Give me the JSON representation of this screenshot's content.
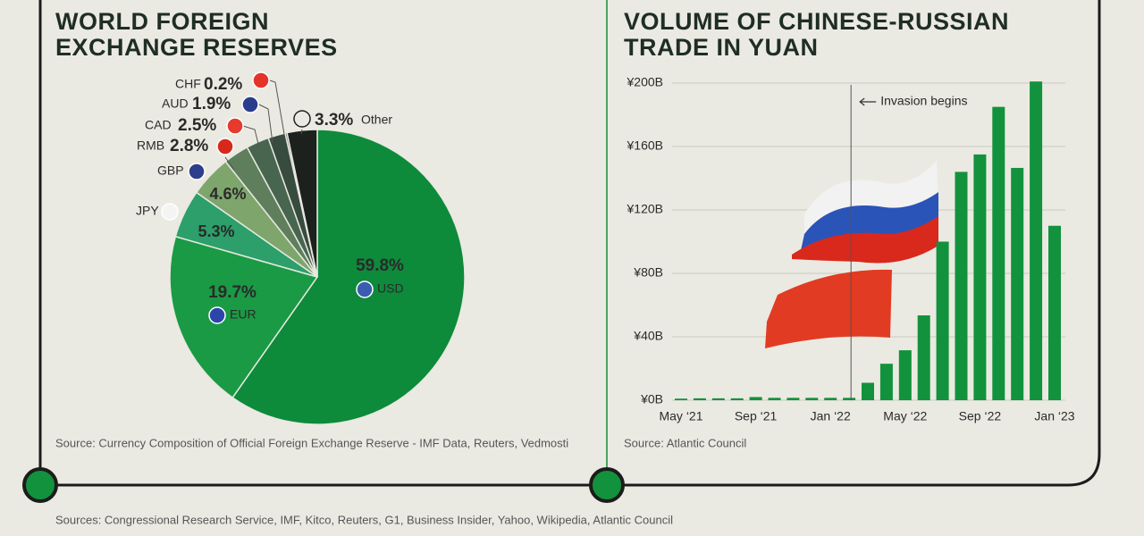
{
  "chart_data": [
    {
      "type": "pie",
      "title": "WORLD FOREIGN EXCHANGE RESERVES",
      "categories": [
        "USD",
        "EUR",
        "JPY",
        "GBP",
        "RMB",
        "CAD",
        "AUD",
        "CHF",
        "Other"
      ],
      "values": [
        59.8,
        19.7,
        5.3,
        4.6,
        2.8,
        2.5,
        1.9,
        0.2,
        3.3
      ],
      "value_labels": [
        "59.8%",
        "19.7%",
        "5.3%",
        "4.6%",
        "2.8%",
        "2.5%",
        "1.9%",
        "0.2%",
        "3.3%"
      ],
      "colors": [
        "#0e8a3b",
        "#1a9a44",
        "#2c9f6a",
        "#7ea56c",
        "#5f7f5c",
        "#48654f",
        "#384b3f",
        "#2e3a33",
        "#1c211d"
      ],
      "source": "Source: Currency Composition of Official Foreign Exchange Reserve - IMF Data, Reuters, Vedmosti"
    },
    {
      "type": "bar",
      "title": "VOLUME OF CHINESE-RUSSIAN TRADE IN YUAN",
      "categories": [
        "May ‘21",
        null,
        null,
        null,
        "Sep ‘21",
        null,
        null,
        null,
        "Jan ‘22",
        null,
        null,
        null,
        "May ‘22",
        null,
        null,
        null,
        "Sep ‘22",
        null,
        null,
        null,
        "Jan ‘23"
      ],
      "values": [
        1,
        1.2,
        1.2,
        1.2,
        2,
        1.5,
        1.5,
        1.5,
        1.5,
        1.5,
        11,
        23,
        31.5,
        53.5,
        100,
        144,
        155,
        185,
        146.5,
        201,
        110
      ],
      "color": "#12923c",
      "ylim": [
        0,
        200
      ],
      "yticks": [
        {
          "value": 0,
          "label": "¥0B"
        },
        {
          "value": 40,
          "label": "¥40B"
        },
        {
          "value": 80,
          "label": "¥80B"
        },
        {
          "value": 120,
          "label": "¥120B"
        },
        {
          "value": 160,
          "label": "¥160B"
        },
        {
          "value": 200,
          "label": "¥200B"
        }
      ],
      "grid": true,
      "annotation": "Invasion begins",
      "source": "Source: Atlantic Council"
    }
  ],
  "sources": "Sources: Congressional Research Service, IMF, Kitco, Reuters, G1, Business Insider, Yahoo, Wikipedia, Atlantic Council"
}
